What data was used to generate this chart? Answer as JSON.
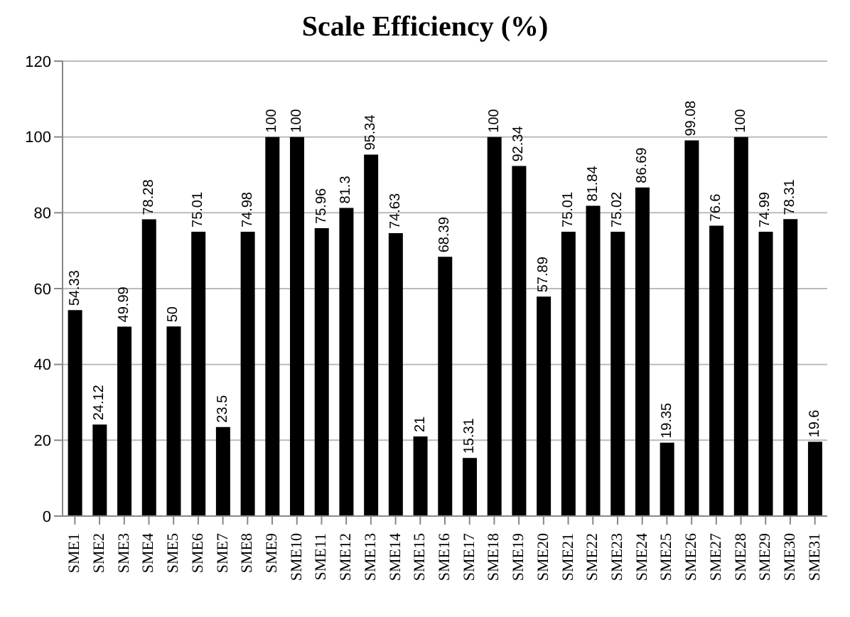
{
  "chart_data": {
    "type": "bar",
    "title": "Scale Efficiency (%)",
    "categories": [
      "SME1",
      "SME2",
      "SME3",
      "SME4",
      "SME5",
      "SME6",
      "SME7",
      "SME8",
      "SME9",
      "SME10",
      "SME11",
      "SME12",
      "SME13",
      "SME14",
      "SME15",
      "SME16",
      "SME17",
      "SME18",
      "SME19",
      "SME20",
      "SME21",
      "SME22",
      "SME23",
      "SME24",
      "SME25",
      "SME26",
      "SME27",
      "SME28",
      "SME29",
      "SME30",
      "SME31"
    ],
    "values": [
      54.33,
      24.12,
      49.99,
      78.28,
      50,
      75.01,
      23.5,
      74.98,
      100,
      100,
      75.96,
      81.3,
      95.34,
      74.63,
      21,
      68.39,
      15.31,
      100,
      92.34,
      57.89,
      75.01,
      81.84,
      75.02,
      86.69,
      19.35,
      99.08,
      76.6,
      100,
      74.99,
      78.31,
      19.6
    ],
    "color": "#000000",
    "ylim": [
      0,
      120
    ],
    "yticks": [
      0,
      20,
      40,
      60,
      80,
      100,
      120
    ],
    "grid": "y",
    "data_labels": true
  }
}
